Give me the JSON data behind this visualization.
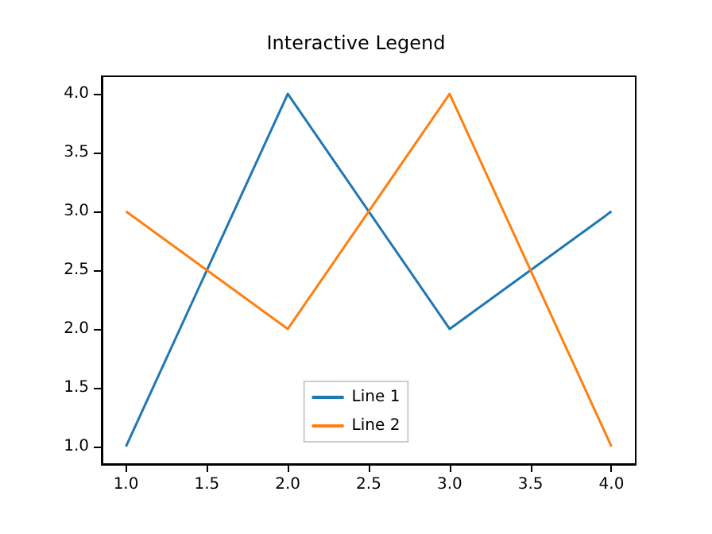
{
  "chart_data": {
    "type": "line",
    "title": "Interactive Legend",
    "x": [
      1,
      2,
      3,
      4
    ],
    "series": [
      {
        "name": "Line 1",
        "color": "#1f77b4",
        "values": [
          1,
          4,
          2,
          3
        ]
      },
      {
        "name": "Line 2",
        "color": "#ff7f0e",
        "values": [
          3,
          2,
          4,
          1
        ]
      }
    ],
    "xlim": [
      0.85,
      4.15
    ],
    "ylim": [
      0.85,
      4.15
    ],
    "xticks": [
      {
        "value": 1,
        "label": "1.0"
      },
      {
        "value": 1.5,
        "label": "1.5"
      },
      {
        "value": 2,
        "label": "2.0"
      },
      {
        "value": 2.5,
        "label": "2.5"
      },
      {
        "value": 3,
        "label": "3.0"
      },
      {
        "value": 3.5,
        "label": "3.5"
      },
      {
        "value": 4,
        "label": "4.0"
      }
    ],
    "yticks": [
      {
        "value": 1,
        "label": "1.0"
      },
      {
        "value": 1.5,
        "label": "1.5"
      },
      {
        "value": 2,
        "label": "2.0"
      },
      {
        "value": 2.5,
        "label": "2.5"
      },
      {
        "value": 3,
        "label": "3.0"
      },
      {
        "value": 3.5,
        "label": "3.5"
      },
      {
        "value": 4,
        "label": "4.0"
      }
    ],
    "grid": false,
    "legend": "bottom",
    "marker": "none",
    "line_style": "solid"
  }
}
